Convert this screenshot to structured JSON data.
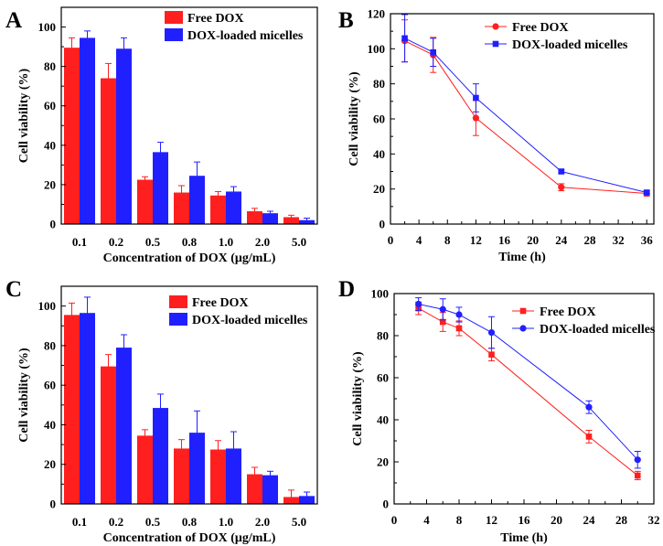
{
  "figure": {
    "colors": {
      "free": "#ff1f1f",
      "micelles": "#2020ff",
      "axis": "#000000"
    },
    "panels": [
      {
        "id": "A",
        "letter": "A",
        "labels": {
          "title": "",
          "xlabel": "Concentration of DOX (μg/mL)",
          "ylabel": "Cell viability (%)"
        }
      },
      {
        "id": "B",
        "letter": "B",
        "labels": {
          "title": "",
          "xlabel": "Time (h)",
          "ylabel": "Cell viability (%)"
        }
      },
      {
        "id": "C",
        "letter": "C",
        "labels": {
          "title": "",
          "xlabel": "Concentration of DOX (μg/mL)",
          "ylabel": "Cell viability (%)"
        }
      },
      {
        "id": "D",
        "letter": "D",
        "labels": {
          "title": "",
          "xlabel": "Time (h)",
          "ylabel": "Cell viability (%)"
        }
      }
    ]
  },
  "chart_data": [
    {
      "panel": "A",
      "type": "bar",
      "title": "",
      "xlabel": "Concentration of DOX (μg/mL)",
      "ylabel": "Cell viability (%)",
      "categories": [
        "0.1",
        "0.2",
        "0.5",
        "0.8",
        "1.0",
        "2.0",
        "5.0"
      ],
      "ylim": [
        0,
        110
      ],
      "yticks": [
        0,
        20,
        40,
        60,
        80,
        100
      ],
      "grid": false,
      "legend": "top-right",
      "series": [
        {
          "name": "Free DOX",
          "color": "#ff1f1f",
          "values": [
            89.5,
            74,
            22.5,
            16,
            14.5,
            6.5,
            3.5
          ],
          "errors": [
            5,
            7.5,
            1.5,
            3.5,
            2,
            1.5,
            1
          ]
        },
        {
          "name": "DOX-loaded micelles",
          "color": "#2020ff",
          "values": [
            94.5,
            89,
            36.5,
            24.5,
            16.5,
            5.5,
            2
          ],
          "errors": [
            3.5,
            5.5,
            5,
            7,
            2.5,
            1,
            1
          ]
        }
      ]
    },
    {
      "panel": "B",
      "type": "line",
      "title": "",
      "xlabel": "Time (h)",
      "ylabel": "Cell viability (%)",
      "xlim": [
        0,
        37
      ],
      "xticks": [
        0,
        4,
        8,
        12,
        16,
        20,
        24,
        28,
        32,
        36
      ],
      "ylim": [
        0,
        120
      ],
      "yticks": [
        0,
        20,
        40,
        60,
        80,
        100,
        120
      ],
      "grid": false,
      "legend": "top-right",
      "series": [
        {
          "name": "Free DOX",
          "marker": "circle",
          "color": "#ff1f1f",
          "x": [
            2,
            6,
            12,
            24,
            36
          ],
          "y": [
            104.5,
            96.5,
            60.5,
            21,
            17.5
          ],
          "errors": [
            12,
            10,
            10,
            2,
            1.5
          ]
        },
        {
          "name": "DOX-loaded micelles",
          "marker": "square",
          "color": "#2020ff",
          "x": [
            2,
            6,
            12,
            24,
            36
          ],
          "y": [
            106,
            98,
            72,
            30,
            18
          ],
          "errors": [
            13.5,
            8,
            8,
            1,
            1
          ]
        }
      ]
    },
    {
      "panel": "C",
      "type": "bar",
      "title": "",
      "xlabel": "Concentration of DOX (μg/mL)",
      "ylabel": "Cell viability (%)",
      "categories": [
        "0.1",
        "0.2",
        "0.5",
        "0.8",
        "1.0",
        "2.0",
        "5.0"
      ],
      "ylim": [
        0,
        110
      ],
      "yticks": [
        0,
        20,
        40,
        60,
        80,
        100
      ],
      "grid": false,
      "legend": "top-right",
      "series": [
        {
          "name": "Free DOX",
          "color": "#ff1f1f",
          "values": [
            95.5,
            69.5,
            34.5,
            28,
            27.5,
            15,
            3.5
          ],
          "errors": [
            6,
            6,
            3,
            4.5,
            4.5,
            3.5,
            3.5
          ]
        },
        {
          "name": "DOX-loaded micelles",
          "color": "#2020ff",
          "values": [
            96.5,
            79,
            48.5,
            36,
            28,
            14.5,
            4
          ],
          "errors": [
            8,
            6.5,
            7,
            11,
            8.5,
            2,
            2
          ]
        }
      ]
    },
    {
      "panel": "D",
      "type": "line",
      "title": "",
      "xlabel": "Time (h)",
      "ylabel": "Cell viability (%)",
      "xlim": [
        0,
        32
      ],
      "xticks": [
        0,
        4,
        8,
        12,
        16,
        20,
        24,
        28,
        32
      ],
      "ylim": [
        0,
        100
      ],
      "yticks": [
        0,
        20,
        40,
        60,
        80,
        100
      ],
      "grid": false,
      "legend": "top-right",
      "series": [
        {
          "name": "Free DOX",
          "marker": "square",
          "color": "#ff1f1f",
          "x": [
            3,
            6,
            8,
            12,
            24,
            30
          ],
          "y": [
            93,
            86.5,
            83.5,
            71,
            32,
            13.5
          ],
          "errors": [
            3,
            4.5,
            3.5,
            3,
            3,
            2
          ]
        },
        {
          "name": "DOX-loaded micelles",
          "marker": "circle",
          "color": "#2020ff",
          "x": [
            3,
            6,
            8,
            12,
            24,
            30
          ],
          "y": [
            95,
            92.5,
            90,
            81.5,
            46,
            21
          ],
          "errors": [
            3,
            5,
            3.5,
            7.5,
            3,
            4
          ]
        }
      ]
    }
  ]
}
